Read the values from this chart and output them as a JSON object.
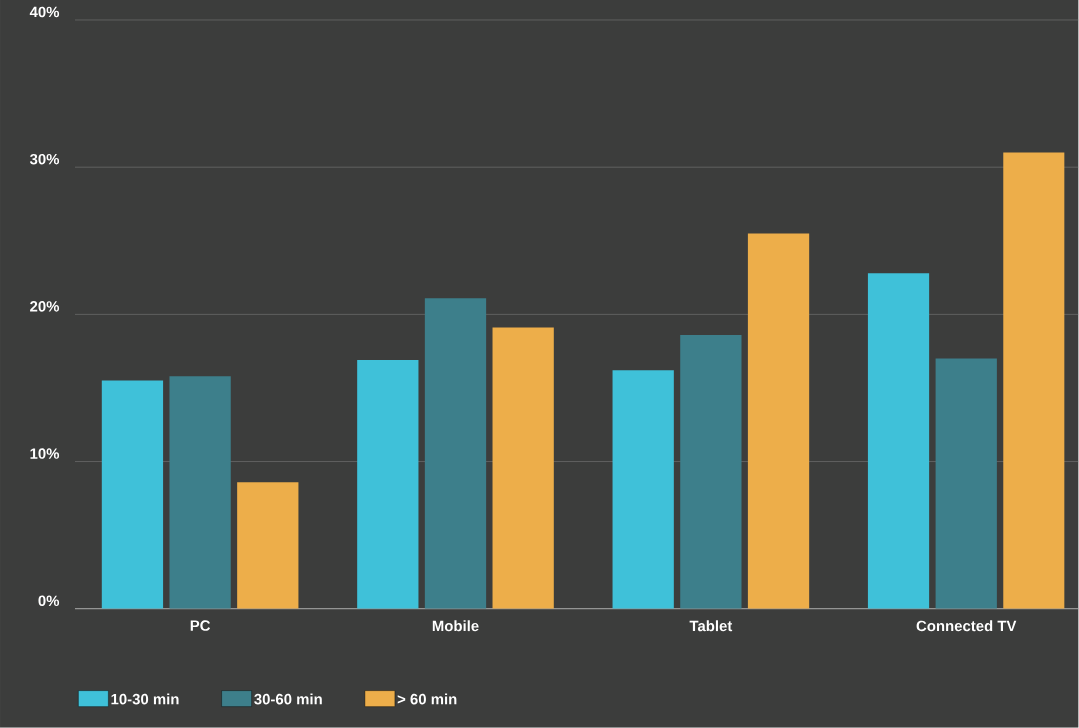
{
  "chart_data": {
    "type": "bar",
    "categories": [
      "PC",
      "Mobile",
      "Tablet",
      "Connected TV"
    ],
    "series": [
      {
        "name": "10-30 min",
        "color": "#3fc1d9",
        "values": [
          15.5,
          16.9,
          16.2,
          22.8
        ]
      },
      {
        "name": "30-60 min",
        "color": "#3d7f8b",
        "values": [
          15.8,
          21.1,
          18.6,
          17.0
        ]
      },
      {
        "name": "> 60 min",
        "color": "#edae4a",
        "values": [
          8.6,
          19.1,
          25.5,
          31.0
        ]
      }
    ],
    "ylim": [
      0,
      40
    ],
    "yticks": [
      {
        "value": 0,
        "label": "0%"
      },
      {
        "value": 10,
        "label": "10%"
      },
      {
        "value": 20,
        "label": "20%"
      },
      {
        "value": 30,
        "label": "30%"
      },
      {
        "value": 40,
        "label": "40%"
      }
    ],
    "grid": "y",
    "legend": "bottom"
  }
}
